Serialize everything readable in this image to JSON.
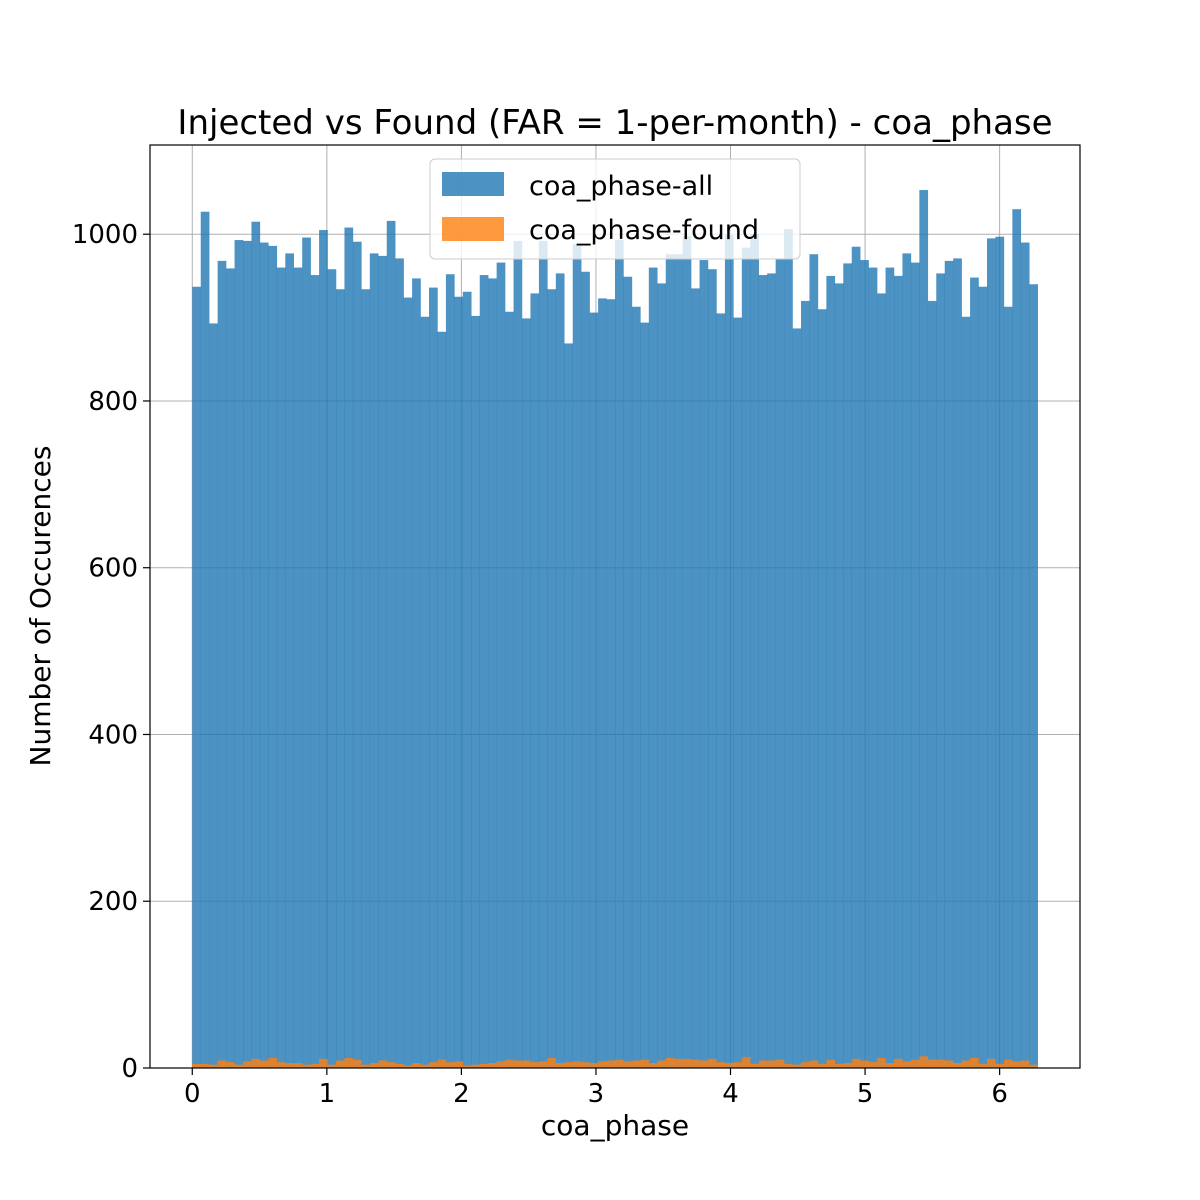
{
  "chart_data": {
    "type": "bar",
    "title": "Injected vs Found (FAR = 1-per-month) - coa_phase",
    "xlabel": "coa_phase",
    "ylabel": "Number of Occurences",
    "xlim": [
      -0.3142,
      6.5973
    ],
    "ylim": [
      0,
      1107
    ],
    "xticks": [
      0,
      1,
      2,
      3,
      4,
      5,
      6
    ],
    "yticks": [
      0,
      200,
      400,
      600,
      800,
      1000
    ],
    "grid": true,
    "legend_position": "top-center",
    "bins": {
      "start": 0,
      "end": 6.2832,
      "count": 100
    },
    "series": [
      {
        "name": "coa_phase-all",
        "color": "#1f77b4",
        "alpha": 0.8,
        "values": [
          937,
          1027,
          893,
          968,
          959,
          993,
          992,
          1015,
          990,
          986,
          960,
          977,
          960,
          996,
          951,
          1005,
          958,
          934,
          1008,
          991,
          934,
          977,
          974,
          1016,
          971,
          924,
          947,
          901,
          936,
          883,
          952,
          925,
          931,
          902,
          951,
          947,
          966,
          907,
          992,
          899,
          929,
          992,
          934,
          953,
          869,
          988,
          955,
          906,
          923,
          922,
          993,
          949,
          913,
          894,
          960,
          941,
          976,
          976,
          998,
          935,
          969,
          958,
          905,
          999,
          900,
          984,
          1000,
          951,
          953,
          971,
          1006,
          887,
          920,
          976,
          910,
          950,
          941,
          965,
          985,
          969,
          960,
          929,
          960,
          950,
          977,
          966,
          1053,
          920,
          953,
          968,
          971,
          901,
          948,
          937,
          995,
          997,
          913,
          1030,
          990,
          940
        ]
      },
      {
        "name": "coa_phase-found",
        "color": "#ff7f0e",
        "alpha": 0.8,
        "values": [
          5,
          5,
          4,
          9,
          7,
          4,
          8,
          11,
          9,
          12,
          7,
          6,
          6,
          4,
          5,
          11,
          4,
          9,
          12,
          10,
          4,
          6,
          9,
          7,
          5,
          3,
          6,
          4,
          7,
          10,
          7,
          8,
          3,
          4,
          5,
          6,
          8,
          10,
          9,
          9,
          7,
          8,
          12,
          6,
          7,
          8,
          7,
          6,
          8,
          9,
          10,
          8,
          9,
          10,
          6,
          9,
          12,
          11,
          11,
          10,
          9,
          11,
          7,
          6,
          7,
          13,
          5,
          9,
          9,
          10,
          5,
          4,
          7,
          9,
          5,
          10,
          5,
          6,
          11,
          9,
          7,
          12,
          6,
          11,
          8,
          10,
          14,
          10,
          10,
          9,
          6,
          9,
          12,
          5,
          11,
          5,
          10,
          8,
          9,
          4
        ]
      }
    ]
  }
}
